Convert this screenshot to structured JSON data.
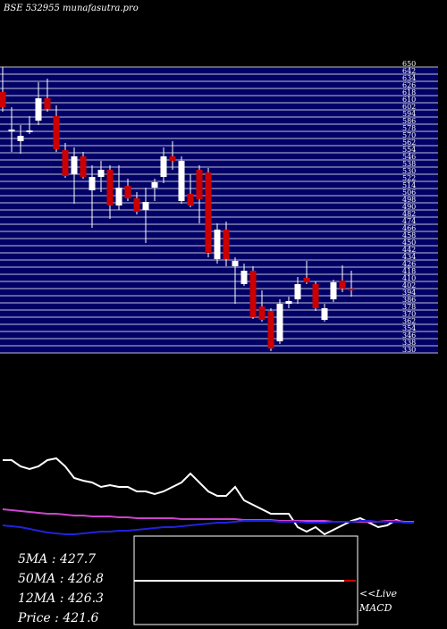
{
  "chart_data": {
    "type": "candlestick",
    "title": "BSE 532955 munafasutra.pro",
    "open": [
      622,
      578,
      567,
      577,
      590,
      615,
      595,
      557,
      530,
      550,
      512,
      527,
      535,
      495,
      517,
      503,
      490,
      515,
      527,
      550,
      500,
      508,
      535,
      532,
      435,
      468,
      427,
      407,
      422,
      382,
      377,
      343,
      385,
      390,
      414,
      407,
      367,
      390,
      411,
      402
    ],
    "high": [
      650,
      605,
      585,
      595,
      633,
      637,
      607,
      565,
      560,
      555,
      540,
      545,
      540,
      540,
      525,
      510,
      515,
      525,
      560,
      567,
      550,
      530,
      540,
      537,
      475,
      477,
      437,
      430,
      427,
      400,
      380,
      390,
      393,
      415,
      433,
      410,
      385,
      412,
      428,
      422
    ],
    "low": [
      600,
      555,
      553,
      575,
      585,
      600,
      555,
      526,
      497,
      525,
      470,
      510,
      480,
      490,
      500,
      485,
      453,
      500,
      520,
      535,
      497,
      493,
      475,
      437,
      430,
      427,
      385,
      405,
      368,
      365,
      332,
      340,
      380,
      385,
      407,
      377,
      365,
      387,
      398,
      393
    ],
    "close": [
      605,
      580,
      573,
      579,
      615,
      603,
      558,
      528,
      550,
      527,
      527,
      535,
      495,
      515,
      503,
      488,
      499,
      521,
      550,
      545,
      545,
      495,
      502,
      442,
      468,
      435,
      433,
      422,
      370,
      367,
      335,
      385,
      388,
      407,
      409,
      380,
      380,
      409,
      402,
      400
    ],
    "up_color": "#ffffff",
    "down_color": "#cc0000",
    "background": "#000066",
    "ylim": [
      330,
      650
    ],
    "yticks": [
      650,
      642,
      634,
      626,
      618,
      610,
      602,
      594,
      586,
      578,
      570,
      562,
      554,
      546,
      538,
      530,
      522,
      514,
      506,
      498,
      490,
      482,
      474,
      466,
      458,
      450,
      442,
      434,
      426,
      418,
      410,
      402,
      394,
      386,
      378,
      370,
      362,
      354,
      346,
      338,
      330
    ],
    "indicators": {
      "ylim": [
        0,
        100
      ],
      "series": [
        {
          "color": "#ffffff",
          "values": [
            85,
            85,
            78,
            75,
            78,
            85,
            87,
            78,
            65,
            62,
            60,
            55,
            57,
            55,
            55,
            50,
            50,
            47,
            50,
            55,
            60,
            70,
            60,
            50,
            45,
            45,
            55,
            40,
            35,
            30,
            25,
            25,
            25,
            10,
            5,
            10,
            2,
            7,
            12,
            17,
            20,
            15,
            10,
            12,
            18,
            15,
            15
          ]
        },
        {
          "color": "#cc44cc",
          "values": [
            30,
            29,
            28,
            27,
            26,
            25,
            25,
            24,
            23,
            23,
            22,
            22,
            22,
            21,
            21,
            20,
            20,
            20,
            20,
            20,
            19,
            19,
            19,
            19,
            19,
            19,
            19,
            18,
            18,
            18,
            18,
            17,
            17,
            17,
            17,
            17,
            17,
            16,
            16,
            16,
            16,
            16,
            16,
            17,
            17,
            16,
            16
          ]
        },
        {
          "color": "#2222dd",
          "values": [
            12,
            11,
            10,
            8,
            6,
            4,
            3,
            2,
            2,
            3,
            4,
            5,
            5,
            6,
            6,
            7,
            8,
            9,
            10,
            10,
            11,
            12,
            13,
            14,
            15,
            15,
            16,
            17,
            17,
            17,
            17,
            16,
            16,
            16,
            15,
            15,
            15,
            16,
            16,
            16,
            17,
            17,
            16,
            16,
            16,
            15,
            15
          ]
        }
      ]
    },
    "stats": [
      "5MA : 427.7",
      "50MA : 426.8",
      "12MA : 426.3",
      "Price   : 421.6"
    ],
    "live_label": [
      "<<Live",
      "MACD"
    ]
  }
}
